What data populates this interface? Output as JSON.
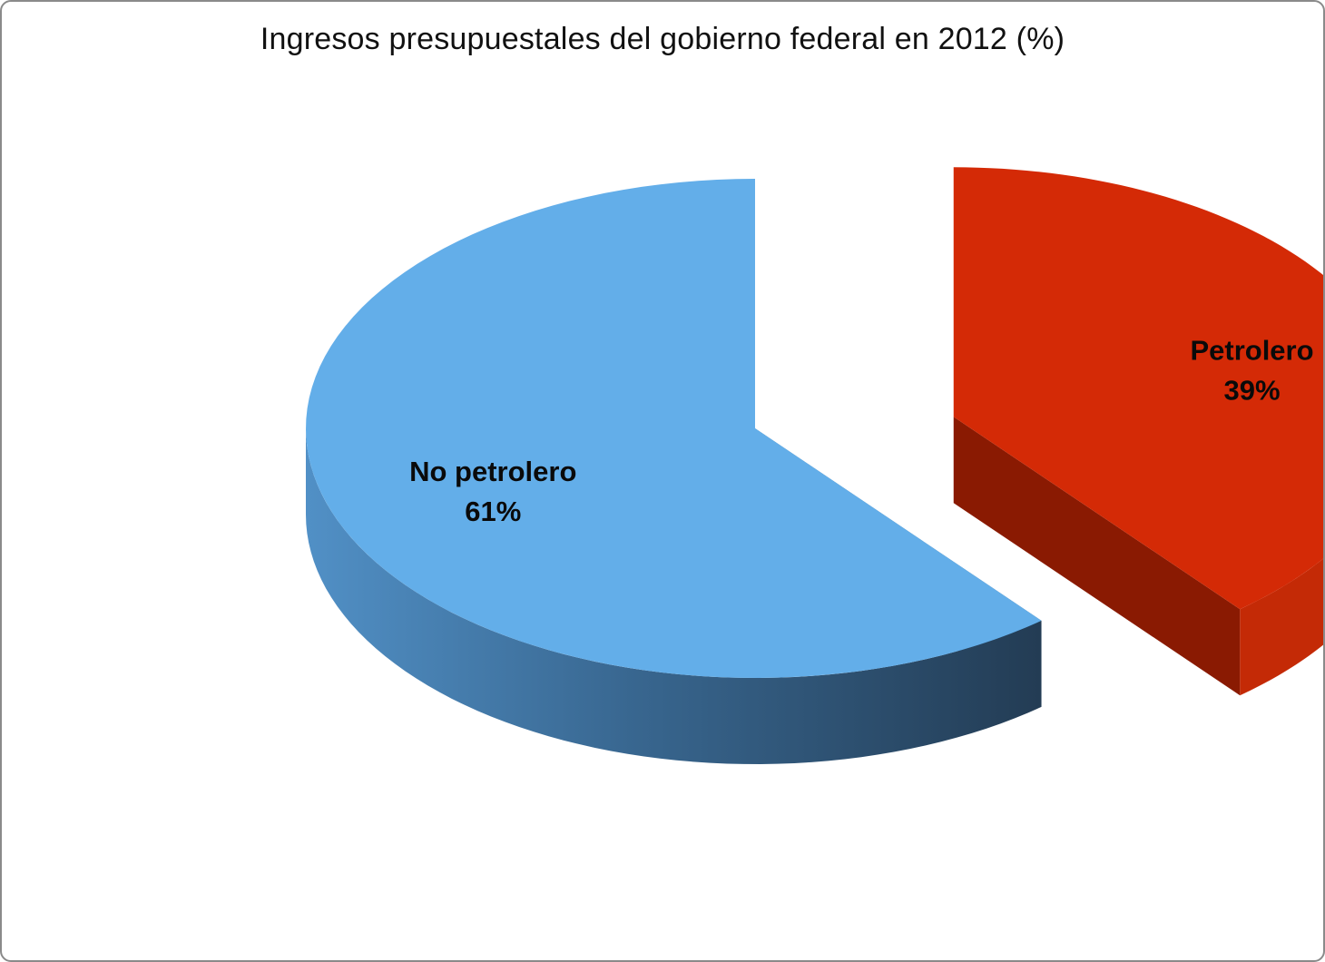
{
  "chart_data": {
    "type": "pie",
    "title": "Ingresos presupuestales del gobierno federal en 2012 (%)",
    "slices": [
      {
        "label": "Petrolero",
        "value_label": "39%",
        "value": 39,
        "color": "#d42a06",
        "side_color": "#8a1a02",
        "exploded": true
      },
      {
        "label": "No petrolero",
        "value_label": "61%",
        "value": 61,
        "color": "#63aee9",
        "side_color": "#2f5778",
        "exploded": false
      }
    ]
  }
}
